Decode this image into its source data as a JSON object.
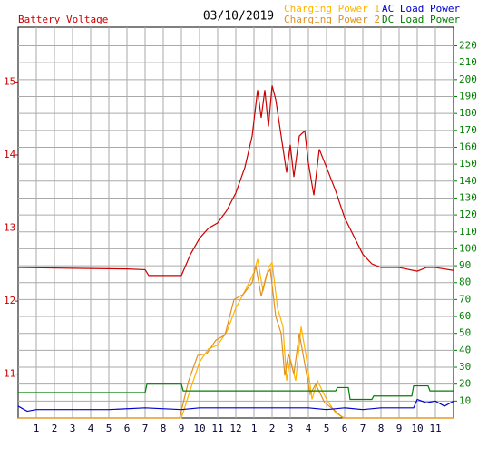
{
  "chart_data": {
    "type": "line",
    "date": "03/10/2019",
    "grid": true,
    "xlim": [
      0,
      24
    ],
    "xticks": [
      1,
      2,
      3,
      4,
      5,
      6,
      7,
      8,
      9,
      10,
      11,
      12,
      {
        "value": 13,
        "label": "1"
      },
      {
        "value": 14,
        "label": "2"
      },
      {
        "value": 15,
        "label": "3"
      },
      {
        "value": 16,
        "label": "4"
      },
      {
        "value": 17,
        "label": "5"
      },
      {
        "value": 18,
        "label": "6"
      },
      {
        "value": 19,
        "label": "7"
      },
      {
        "value": 20,
        "label": "8"
      },
      {
        "value": 21,
        "label": "9"
      },
      {
        "value": 22,
        "label": "10"
      },
      {
        "value": 23,
        "label": "11"
      }
    ],
    "ylim": [
      10.4,
      15.75
    ],
    "yticks": [
      11,
      12,
      13,
      14,
      15
    ],
    "y2lim": [
      0,
      231
    ],
    "y2ticks": [
      10,
      20,
      30,
      40,
      50,
      60,
      70,
      80,
      90,
      100,
      110,
      120,
      130,
      140,
      150,
      160,
      170,
      180,
      190,
      200,
      210,
      220
    ],
    "series": [
      {
        "name": "Battery Voltage",
        "color": "#cc0000",
        "axis": "y",
        "x": [
          0,
          3,
          6,
          7,
          7.2,
          9,
          9.5,
          10,
          10.5,
          11,
          11.5,
          12,
          12.5,
          12.9,
          13.2,
          13.4,
          13.6,
          13.8,
          14,
          14.2,
          14.5,
          14.8,
          15,
          15.2,
          15.5,
          15.8,
          16,
          16.3,
          16.6,
          17,
          17.5,
          18,
          18.5,
          19,
          19.5,
          20,
          21,
          22,
          22.5,
          23,
          24
        ],
        "values": [
          12.46,
          12.45,
          12.44,
          12.43,
          12.35,
          12.35,
          12.64,
          12.86,
          13.0,
          13.07,
          13.24,
          13.48,
          13.83,
          14.26,
          14.89,
          14.51,
          14.89,
          14.39,
          14.95,
          14.76,
          14.26,
          13.76,
          14.14,
          13.7,
          14.26,
          14.33,
          13.89,
          13.45,
          14.08,
          13.83,
          13.51,
          13.14,
          12.89,
          12.64,
          12.51,
          12.46,
          12.46,
          12.41,
          12.46,
          12.46,
          12.42
        ]
      },
      {
        "name": "Charging Power 1",
        "color": "#ffb400",
        "axis": "y2",
        "x": [
          0,
          8.8,
          9,
          9.5,
          10,
          10.5,
          11,
          11.5,
          12,
          12.5,
          13,
          13.2,
          13.5,
          13.8,
          14,
          14.3,
          14.6,
          14.8,
          15,
          15.3,
          15.6,
          15.9,
          16.2,
          16.5,
          17,
          17.5,
          18,
          24
        ],
        "values": [
          0,
          0,
          0,
          17,
          33,
          41,
          43,
          51,
          65,
          75,
          86,
          94,
          75,
          89,
          92,
          65,
          54,
          22,
          35,
          22,
          54,
          35,
          11,
          22,
          11,
          3,
          0,
          0
        ]
      },
      {
        "name": "Charging Power 2",
        "color": "#e09020",
        "axis": "y2",
        "x": [
          0,
          8.6,
          8.9,
          9.4,
          9.9,
          10.4,
          10.9,
          11.4,
          11.9,
          12.4,
          12.9,
          13.1,
          13.4,
          13.7,
          13.9,
          14.2,
          14.5,
          14.7,
          14.9,
          15.2,
          15.5,
          15.8,
          16.1,
          16.4,
          16.9,
          17.4,
          17.9,
          24
        ],
        "values": [
          0,
          0,
          0,
          22,
          37,
          38,
          46,
          49,
          70,
          73,
          80,
          90,
          72,
          85,
          88,
          60,
          50,
          25,
          38,
          26,
          50,
          32,
          14,
          20,
          9,
          5,
          0,
          0
        ]
      },
      {
        "name": "AC Load Power",
        "color": "#0000cc",
        "axis": "y2",
        "x": [
          0,
          0.5,
          1,
          3,
          5,
          7,
          9,
          10,
          12,
          14,
          16,
          17,
          18,
          19,
          20,
          21,
          21.8,
          22,
          22.5,
          23,
          23.5,
          24
        ],
        "values": [
          7,
          4,
          5,
          5,
          5,
          6,
          5,
          6,
          6,
          6,
          6,
          5,
          6,
          5,
          6,
          6,
          6,
          11,
          9,
          10,
          7,
          10
        ]
      },
      {
        "name": "DC Load Power",
        "color": "#008000",
        "axis": "y2",
        "x": [
          0,
          7,
          7.1,
          9,
          9.1,
          17.5,
          17.6,
          18.2,
          18.3,
          19.5,
          19.6,
          21.7,
          21.8,
          22.6,
          22.7,
          24
        ],
        "values": [
          15,
          15,
          20,
          20,
          16,
          16,
          18,
          18,
          11,
          11,
          13,
          13,
          19,
          19,
          16,
          16
        ]
      }
    ]
  }
}
